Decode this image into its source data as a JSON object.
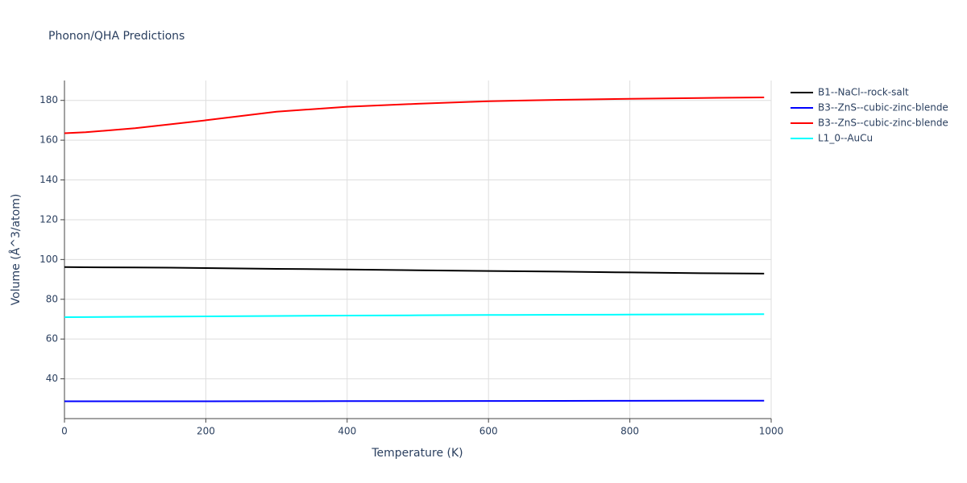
{
  "chart_data": {
    "type": "line",
    "title": "Phonon/QHA Predictions",
    "x_label": "Temperature (K)",
    "y_label": "Volume (Å^3/atom)",
    "x": [
      0,
      30,
      100,
      150,
      200,
      300,
      400,
      500,
      600,
      700,
      800,
      900,
      990
    ],
    "series": [
      {
        "name": "B1--NaCl--rock-salt",
        "color": "#000000",
        "values": [
          96.2,
          96.1,
          96.0,
          95.9,
          95.7,
          95.3,
          95.0,
          94.6,
          94.2,
          93.9,
          93.5,
          93.1,
          92.9
        ]
      },
      {
        "name": "B3--ZnS--cubic-zinc-blende",
        "color": "#0000ff",
        "values": [
          28.7,
          28.7,
          28.7,
          28.7,
          28.7,
          28.75,
          28.8,
          28.8,
          28.85,
          28.9,
          28.95,
          29.0,
          29.0
        ]
      },
      {
        "name": "B3--ZnS--cubic-zinc-blende",
        "color": "#ff0000",
        "values": [
          163.5,
          164.0,
          166.0,
          168.0,
          170.0,
          174.3,
          176.8,
          178.3,
          179.6,
          180.3,
          180.8,
          181.2,
          181.5
        ]
      },
      {
        "name": "L1_0--AuCu",
        "color": "#00ffff",
        "values": [
          71.0,
          71.05,
          71.2,
          71.3,
          71.4,
          71.6,
          71.8,
          71.95,
          72.1,
          72.2,
          72.3,
          72.4,
          72.5
        ]
      }
    ],
    "xlim": [
      0,
      1000
    ],
    "xticks": [
      0,
      200,
      400,
      600,
      800,
      1000
    ],
    "ylim": [
      20,
      190
    ],
    "yticks": [
      40,
      60,
      80,
      100,
      120,
      140,
      160,
      180
    ],
    "grid": true,
    "legend": "right"
  }
}
